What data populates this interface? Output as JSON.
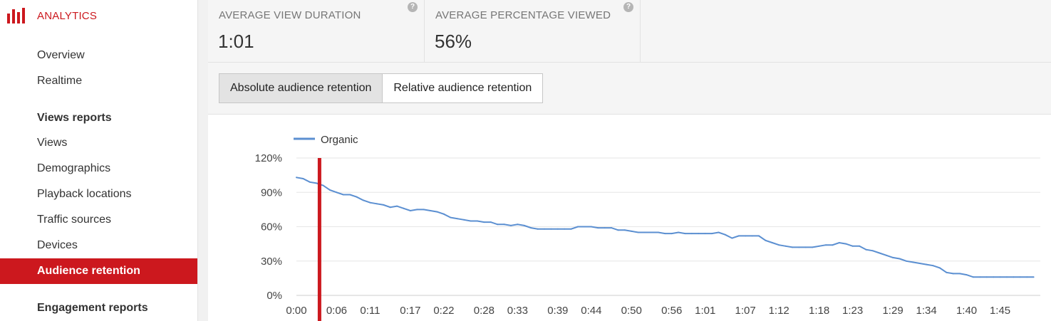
{
  "app": {
    "brand_label": "ANALYTICS",
    "brand_color": "#cc181e"
  },
  "sidebar": {
    "items": [
      {
        "label": "Overview"
      },
      {
        "label": "Realtime"
      },
      {
        "label": "Views reports"
      },
      {
        "label": "Views"
      },
      {
        "label": "Demographics"
      },
      {
        "label": "Playback locations"
      },
      {
        "label": "Traffic sources"
      },
      {
        "label": "Devices"
      },
      {
        "label": "Audience retention"
      },
      {
        "label": "Engagement reports"
      }
    ],
    "active_item": "Audience retention"
  },
  "metrics": [
    {
      "label": "AVERAGE VIEW DURATION",
      "value": "1:01",
      "help_icon": "question-circle-icon"
    },
    {
      "label": "AVERAGE PERCENTAGE VIEWED",
      "value": "56%",
      "help_icon": "question-circle-icon"
    }
  ],
  "toolbar": {
    "absolute_label": "Absolute audience retention",
    "relative_label": "Relative audience retention",
    "selected": "Absolute audience retention"
  },
  "chart_data": {
    "type": "line",
    "title": "",
    "xlabel": "",
    "ylabel": "",
    "ylim": [
      0,
      120
    ],
    "yticks": [
      "0%",
      "30%",
      "60%",
      "90%",
      "120%"
    ],
    "ytick_values": [
      0,
      30,
      60,
      90,
      120
    ],
    "xlim": [
      0,
      111
    ],
    "xticks": [
      "0:00",
      "0:06",
      "0:11",
      "0:17",
      "0:22",
      "0:28",
      "0:33",
      "0:39",
      "0:44",
      "0:50",
      "0:56",
      "1:01",
      "1:07",
      "1:12",
      "1:18",
      "1:23",
      "1:29",
      "1:34",
      "1:40",
      "1:45"
    ],
    "xtick_seconds": [
      0,
      6,
      11,
      17,
      22,
      28,
      33,
      39,
      44,
      50,
      56,
      61,
      67,
      72,
      78,
      83,
      89,
      94,
      100,
      105
    ],
    "grid": true,
    "legend": "top-left",
    "marker_x": 3.5,
    "marker_color": "#cc181e",
    "series": [
      {
        "name": "Organic",
        "color": "#5b8fd1",
        "x": [
          0,
          1,
          2,
          3,
          4,
          5,
          6,
          7,
          8,
          9,
          10,
          11,
          12,
          13,
          14,
          15,
          16,
          17,
          18,
          19,
          20,
          21,
          22,
          23,
          24,
          25,
          26,
          27,
          28,
          29,
          30,
          31,
          32,
          33,
          34,
          35,
          36,
          37,
          38,
          39,
          40,
          41,
          42,
          43,
          44,
          45,
          46,
          47,
          48,
          49,
          50,
          51,
          52,
          53,
          54,
          55,
          56,
          57,
          58,
          59,
          60,
          61,
          62,
          63,
          64,
          65,
          66,
          67,
          68,
          69,
          70,
          71,
          72,
          73,
          74,
          75,
          76,
          77,
          78,
          79,
          80,
          81,
          82,
          83,
          84,
          85,
          86,
          87,
          88,
          89,
          90,
          91,
          92,
          93,
          94,
          95,
          96,
          97,
          98,
          99,
          100,
          101,
          102,
          103,
          104,
          105,
          106,
          107,
          108,
          109,
          110
        ],
        "values": [
          103,
          102,
          99,
          98,
          96,
          92,
          90,
          88,
          88,
          86,
          83,
          81,
          80,
          79,
          77,
          78,
          76,
          74,
          75,
          75,
          74,
          73,
          71,
          68,
          67,
          66,
          65,
          65,
          64,
          64,
          62,
          62,
          61,
          62,
          61,
          59,
          58,
          58,
          58,
          58,
          58,
          58,
          60,
          60,
          60,
          59,
          59,
          59,
          57,
          57,
          56,
          55,
          55,
          55,
          55,
          54,
          54,
          55,
          54,
          54,
          54,
          54,
          54,
          55,
          53,
          50,
          52,
          52,
          52,
          52,
          48,
          46,
          44,
          43,
          42,
          42,
          42,
          42,
          43,
          44,
          44,
          46,
          45,
          43,
          43,
          40,
          39,
          37,
          35,
          33,
          32,
          30,
          29,
          28,
          27,
          26,
          24,
          20,
          19,
          19,
          18,
          16,
          16,
          16,
          16,
          16,
          16,
          16,
          16,
          16,
          16
        ]
      }
    ]
  }
}
